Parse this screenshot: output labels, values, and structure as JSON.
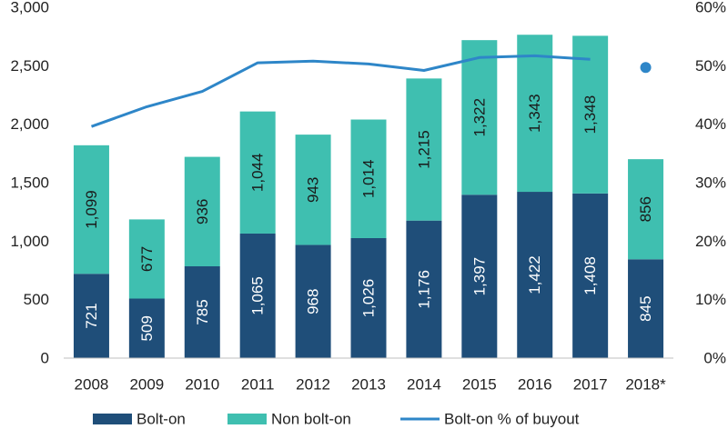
{
  "chart_data": {
    "type": "bar",
    "stacked": true,
    "categories": [
      "2008",
      "2009",
      "2010",
      "2011",
      "2012",
      "2013",
      "2014",
      "2015",
      "2016",
      "2017",
      "2018*"
    ],
    "series": [
      {
        "name": "Bolt-on",
        "values": [
          721,
          509,
          785,
          1065,
          968,
          1026,
          1176,
          1397,
          1422,
          1408,
          845
        ],
        "color": "#1f4e79",
        "label_color": "#ffffff",
        "labels": [
          "721",
          "509",
          "785",
          "1,065",
          "968",
          "1,026",
          "1,176",
          "1,397",
          "1,422",
          "1,408",
          "845"
        ]
      },
      {
        "name": "Non bolt-on",
        "values": [
          1099,
          677,
          936,
          1044,
          943,
          1014,
          1215,
          1322,
          1343,
          1348,
          856
        ],
        "color": "#3fbfb0",
        "label_color": "#1a1a1a",
        "labels": [
          "1,099",
          "677",
          "936",
          "1,044",
          "943",
          "1,014",
          "1,215",
          "1,322",
          "1,343",
          "1,348",
          "856"
        ]
      }
    ],
    "line_series": {
      "name": "Bolt-on % of buyout",
      "axis": "right",
      "color": "#2e86c8",
      "values": [
        39.6,
        43.0,
        45.6,
        50.5,
        50.8,
        50.3,
        49.2,
        51.4,
        51.7,
        51.1,
        49.7
      ],
      "marker_only_last": true
    },
    "y_left": {
      "min": 0,
      "max": 3000,
      "ticks": [
        0,
        500,
        1000,
        1500,
        2000,
        2500,
        3000
      ],
      "tick_labels": [
        "0",
        "500",
        "1,000",
        "1,500",
        "2,000",
        "2,500",
        "3,000"
      ]
    },
    "y_right": {
      "min": 0,
      "max": 60,
      "ticks": [
        0,
        10,
        20,
        30,
        40,
        50,
        60
      ],
      "tick_labels": [
        "0%",
        "10%",
        "20%",
        "30%",
        "40%",
        "50%",
        "60%"
      ]
    },
    "legend": {
      "position": "bottom",
      "items": [
        {
          "label": "Bolt-on",
          "kind": "box",
          "color": "#1f4e79"
        },
        {
          "label": "Non bolt-on",
          "kind": "box",
          "color": "#3fbfb0"
        },
        {
          "label": "Bolt-on % of buyout",
          "kind": "line",
          "color": "#2e86c8"
        }
      ]
    },
    "title": "",
    "xlabel": "",
    "ylabel": ""
  }
}
